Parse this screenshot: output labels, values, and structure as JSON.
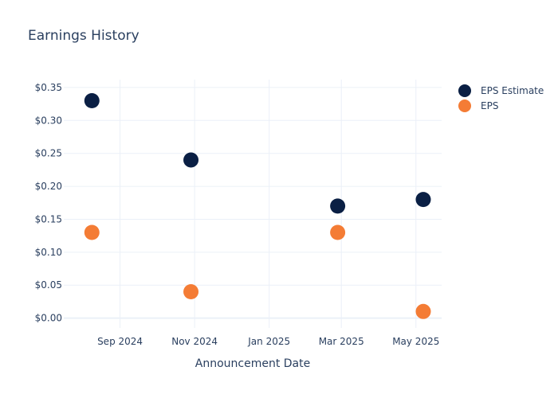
{
  "chart_data": {
    "type": "scatter",
    "title": "Earnings History",
    "xlabel": "Announcement Date",
    "ylabel": "",
    "x_ticks": [
      {
        "date": "2024-09-01",
        "label": "Sep 2024"
      },
      {
        "date": "2024-11-01",
        "label": "Nov 2024"
      },
      {
        "date": "2025-01-01",
        "label": "Jan 2025"
      },
      {
        "date": "2025-03-01",
        "label": "Mar 2025"
      },
      {
        "date": "2025-05-01",
        "label": "May 2025"
      }
    ],
    "y_ticks": [
      {
        "value": 0.0,
        "label": "$0.00"
      },
      {
        "value": 0.05,
        "label": "$0.05"
      },
      {
        "value": 0.1,
        "label": "$0.10"
      },
      {
        "value": 0.15,
        "label": "$0.15"
      },
      {
        "value": 0.2,
        "label": "$0.20"
      },
      {
        "value": 0.25,
        "label": "$0.25"
      },
      {
        "value": 0.3,
        "label": "$0.30"
      },
      {
        "value": 0.35,
        "label": "$0.35"
      }
    ],
    "xlim": [
      "2024-07-17",
      "2025-05-22"
    ],
    "ylim": [
      -0.015,
      0.362
    ],
    "grid": true,
    "legend_position": "top-right",
    "series": [
      {
        "name": "EPS Estimate",
        "color": "#0a1f44",
        "points": [
          {
            "x": "2024-08-09",
            "y": 0.33
          },
          {
            "x": "2024-10-29",
            "y": 0.24
          },
          {
            "x": "2025-02-26",
            "y": 0.17
          },
          {
            "x": "2025-05-07",
            "y": 0.18
          }
        ]
      },
      {
        "name": "EPS",
        "color": "#f47c35",
        "points": [
          {
            "x": "2024-08-09",
            "y": 0.13
          },
          {
            "x": "2024-10-29",
            "y": 0.04
          },
          {
            "x": "2025-02-26",
            "y": 0.13
          },
          {
            "x": "2025-05-07",
            "y": 0.01
          }
        ]
      }
    ]
  }
}
